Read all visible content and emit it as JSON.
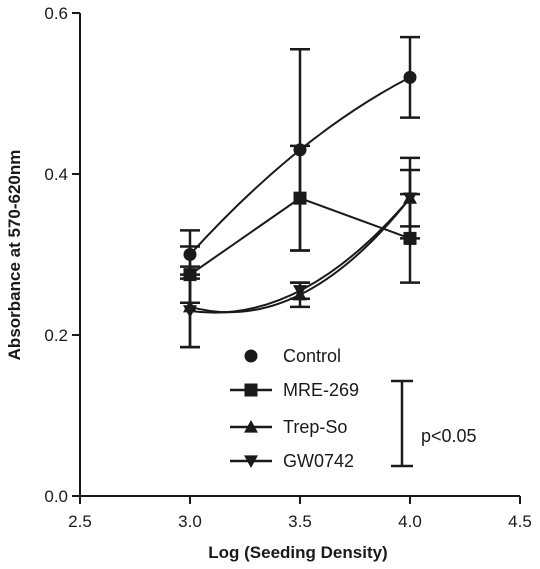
{
  "chart_data": {
    "type": "scatter",
    "title": "",
    "xlabel": "Log (Seeding Density)",
    "ylabel": "Absorbance at 570-620nm",
    "xlim": [
      2.5,
      4.5
    ],
    "ylim": [
      0.0,
      0.6
    ],
    "x_ticks": [
      "2.5",
      "3.0",
      "3.5",
      "4.0",
      "4.5"
    ],
    "y_ticks": [
      "0.0",
      "0.2",
      "0.4",
      "0.6"
    ],
    "grid": false,
    "legend_position": "bottom-right",
    "x": [
      3.0,
      3.5,
      4.0
    ],
    "series": [
      {
        "name": "Control",
        "marker": "circle",
        "values": [
          0.3,
          0.43,
          0.52
        ],
        "errors": [
          0.03,
          0.125,
          0.05
        ]
      },
      {
        "name": "MRE-269",
        "marker": "square",
        "values": [
          0.275,
          0.37,
          0.32
        ],
        "errors": [
          0.035,
          0.065,
          0.055
        ]
      },
      {
        "name": "Trep-So",
        "marker": "triangle-up",
        "values": [
          0.235,
          0.25,
          0.37
        ],
        "errors": [
          0.05,
          0.015,
          0.035
        ]
      },
      {
        "name": "GW0742",
        "marker": "triangle-down",
        "values": [
          0.23,
          0.255,
          0.37
        ],
        "errors": [
          0.045,
          0.01,
          0.05
        ]
      }
    ],
    "annotations": [
      {
        "text": "p<0.05"
      }
    ],
    "colors": {
      "line": "#1a1a1a",
      "background": "#ffffff"
    }
  }
}
